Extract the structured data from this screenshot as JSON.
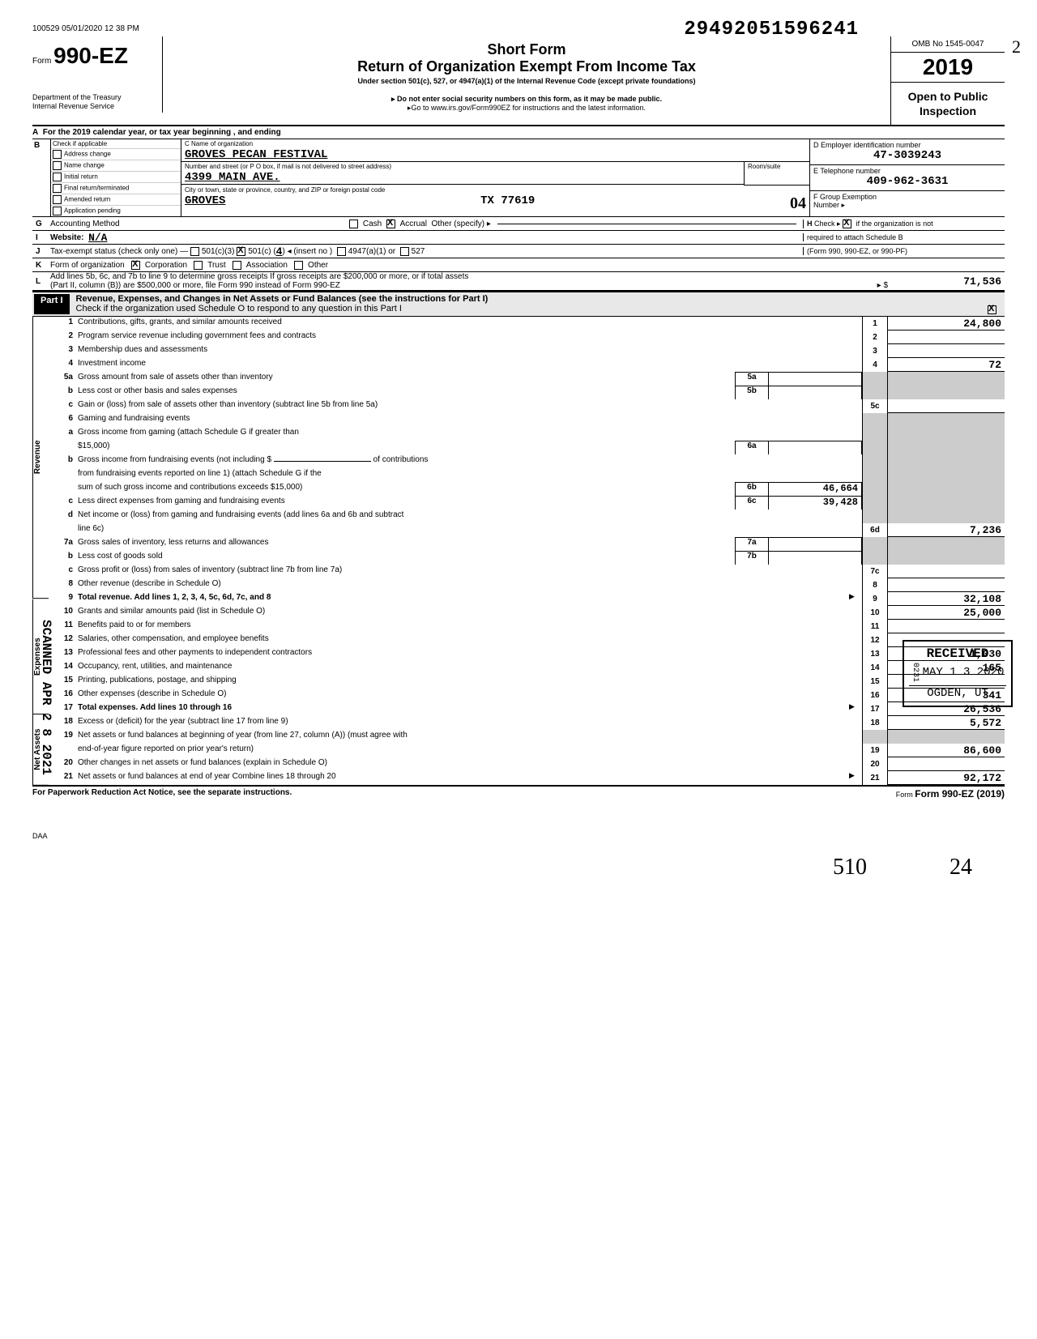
{
  "stamp_top": "100529 05/01/2020 12 38 PM",
  "dln": "29492051596241",
  "form": {
    "prefix": "Form",
    "number": "990-EZ",
    "dept1": "Department of the Treasury",
    "dept2": "Internal Revenue Service"
  },
  "title": {
    "short": "Short Form",
    "main": "Return of Organization Exempt From Income Tax",
    "sub": "Under section 501(c), 527, or 4947(a)(1) of the Internal Revenue Code (except private foundations)",
    "note1": "▸ Do not enter social security numbers on this form, as it may be made public.",
    "note2": "▸Go to www.irs.gov/Form990EZ for instructions and the latest information."
  },
  "rightbox": {
    "omb": "OMB No 1545-0047",
    "year": "2019",
    "open1": "Open to Public",
    "open2": "Inspection"
  },
  "lineA": "For the 2019 calendar year, or tax year beginning                                      , and ending",
  "B": {
    "header": "Check if applicable",
    "items": [
      "Address change",
      "Name change",
      "Initial return",
      "Final return/terminated",
      "Amended return",
      "Application pending"
    ]
  },
  "C": {
    "name_label": "C  Name of organization",
    "name": "GROVES PECAN FESTIVAL",
    "addr_label": "Number and street (or P O  box, if mail is not delivered to street address)",
    "room_label": "Room/suite",
    "addr": "4399 MAIN AVE.",
    "city_label": "City or town, state or province, country, and ZIP or foreign postal code",
    "city": "GROVES",
    "state_zip": "TX  77619"
  },
  "D": {
    "label": "D  Employer identification number",
    "value": "47-3039243"
  },
  "E": {
    "label": "E  Telephone number",
    "value": "409-962-3631"
  },
  "F": {
    "label": "F  Group Exemption",
    "label2": "Number  ▸"
  },
  "G": {
    "label": "Accounting Method",
    "cash": "Cash",
    "accrual": "Accrual",
    "other": "Other (specify) ▸"
  },
  "H": {
    "text1": "Check ▸",
    "text2": "if the organization is not",
    "text3": "required to attach Schedule B",
    "text4": "(Form 990, 990-EZ, or 990-PF)"
  },
  "I": {
    "label": "Website:",
    "value": "N/A"
  },
  "J": {
    "label": "Tax-exempt status (check only one) —",
    "opt1": "501(c)(3)",
    "opt2": "501(c) (",
    "opt2n": "4",
    "opt2b": ") ◂ (insert no )",
    "opt3": "4947(a)(1) or",
    "opt4": "527"
  },
  "K": {
    "label": "Form of organization",
    "opt1": "Corporation",
    "opt2": "Trust",
    "opt3": "Association",
    "opt4": "Other"
  },
  "L": {
    "text1": "Add lines 5b, 6c, and 7b to line 9 to determine gross receipts  If gross receipts are $200,000 or more, or if total assets",
    "text2": "(Part II, column (B)) are $500,000 or more, file Form 990 instead of Form 990-EZ",
    "arrow": "▸  $",
    "value": "71,536"
  },
  "part1": {
    "label": "Part I",
    "title": "Revenue, Expenses, and Changes in Net Assets or Fund Balances (see the instructions for Part I)",
    "check_text": "Check if the organization used Schedule O to respond to any question in this Part I"
  },
  "rows": {
    "r1": {
      "n": "1",
      "d": "Contributions, gifts, grants, and similar amounts received",
      "box": "1",
      "val": "24,800"
    },
    "r2": {
      "n": "2",
      "d": "Program service revenue including government fees and contracts",
      "box": "2",
      "val": ""
    },
    "r3": {
      "n": "3",
      "d": "Membership dues and assessments",
      "box": "3",
      "val": ""
    },
    "r4": {
      "n": "4",
      "d": "Investment income",
      "box": "4",
      "val": "72"
    },
    "r5a": {
      "n": "5a",
      "d": "Gross amount from sale of assets other than inventory",
      "sb": "5a",
      "sv": ""
    },
    "r5b": {
      "n": "b",
      "d": "Less  cost or other basis and sales expenses",
      "sb": "5b",
      "sv": ""
    },
    "r5c": {
      "n": "c",
      "d": "Gain or (loss) from sale of assets other than inventory (subtract line 5b from line 5a)",
      "box": "5c",
      "val": ""
    },
    "r6": {
      "n": "6",
      "d": "Gaming and fundraising events"
    },
    "r6a": {
      "n": "a",
      "d": "Gross income from gaming (attach Schedule G if greater than",
      "d2": "$15,000)",
      "sb": "6a",
      "sv": ""
    },
    "r6b": {
      "n": "b",
      "d": "Gross income from fundraising events (not including  $",
      "d2": "of contributions",
      "d3": "from fundraising  events reported on line 1) (attach Schedule G if the",
      "d4": "sum of such gross income and contributions exceeds $15,000)",
      "sb": "6b",
      "sv": "46,664"
    },
    "r6c": {
      "n": "c",
      "d": "Less  direct expenses from gaming and fundraising events",
      "sb": "6c",
      "sv": "39,428"
    },
    "r6d": {
      "n": "d",
      "d": "Net income or (loss) from gaming and fundraising events (add lines 6a and 6b and subtract",
      "d2": "line 6c)",
      "box": "6d",
      "val": "7,236"
    },
    "r7a": {
      "n": "7a",
      "d": "Gross sales of inventory, less returns and allowances",
      "sb": "7a",
      "sv": ""
    },
    "r7b": {
      "n": "b",
      "d": "Less  cost of goods sold",
      "sb": "7b",
      "sv": ""
    },
    "r7c": {
      "n": "c",
      "d": "Gross profit or (loss) from sales of inventory (subtract line 7b from line 7a)",
      "box": "7c",
      "val": ""
    },
    "r8": {
      "n": "8",
      "d": "Other revenue (describe in Schedule O)",
      "box": "8",
      "val": ""
    },
    "r9": {
      "n": "9",
      "d": "Total revenue. Add lines 1, 2, 3, 4, 5c, 6d, 7c, and 8",
      "box": "9",
      "val": "32,108",
      "bold": true,
      "tri": true
    },
    "r10": {
      "n": "10",
      "d": "Grants and similar amounts paid (list in Schedule O)",
      "box": "10",
      "val": "25,000"
    },
    "r11": {
      "n": "11",
      "d": "Benefits paid to or for members",
      "box": "11",
      "val": ""
    },
    "r12": {
      "n": "12",
      "d": "Salaries, other compensation, and employee benefits",
      "box": "12",
      "val": ""
    },
    "r13": {
      "n": "13",
      "d": "Professional fees and other payments to independent contractors",
      "box": "13",
      "val": "1,030"
    },
    "r14": {
      "n": "14",
      "d": "Occupancy, rent, utilities, and maintenance",
      "box": "14",
      "val": "165"
    },
    "r15": {
      "n": "15",
      "d": "Printing, publications, postage, and shipping",
      "box": "15",
      "val": ""
    },
    "r16": {
      "n": "16",
      "d": "Other expenses (describe in Schedule O)",
      "box": "16",
      "val": "341"
    },
    "r17": {
      "n": "17",
      "d": "Total expenses. Add lines 10 through 16",
      "box": "17",
      "val": "26,536",
      "bold": true,
      "tri": true
    },
    "r18": {
      "n": "18",
      "d": "Excess or (deficit) for the year (subtract line 17 from line 9)",
      "box": "18",
      "val": "5,572"
    },
    "r19": {
      "n": "19",
      "d": "Net assets or fund balances at beginning of year (from line 27, column (A)) (must agree with",
      "d2": "end-of-year figure reported on prior year's return)",
      "box": "19",
      "val": "86,600"
    },
    "r20": {
      "n": "20",
      "d": "Other changes in net assets or fund balances (explain in Schedule O)",
      "box": "20",
      "val": ""
    },
    "r21": {
      "n": "21",
      "d": "Net assets or fund balances at end of year  Combine lines 18 through 20",
      "box": "21",
      "val": "92,172",
      "tri": true
    }
  },
  "sections": {
    "rev": "Revenue",
    "exp": "Expenses",
    "net": "Net Assets"
  },
  "scanned": "SCANNED  APR 2 8  2021",
  "received": {
    "l1": "RECEIVED",
    "l2": "MAY 1 3 2020",
    "l3": "OGDEN, UT",
    "code": "0231"
  },
  "footer": {
    "left": "For Paperwork Reduction Act Notice, see the separate instructions.",
    "daa": "DAA",
    "right": "Form 990-EZ (2019)"
  },
  "handwrite": {
    "a": "510",
    "b": "24",
    "c": "04",
    "d": "2"
  }
}
